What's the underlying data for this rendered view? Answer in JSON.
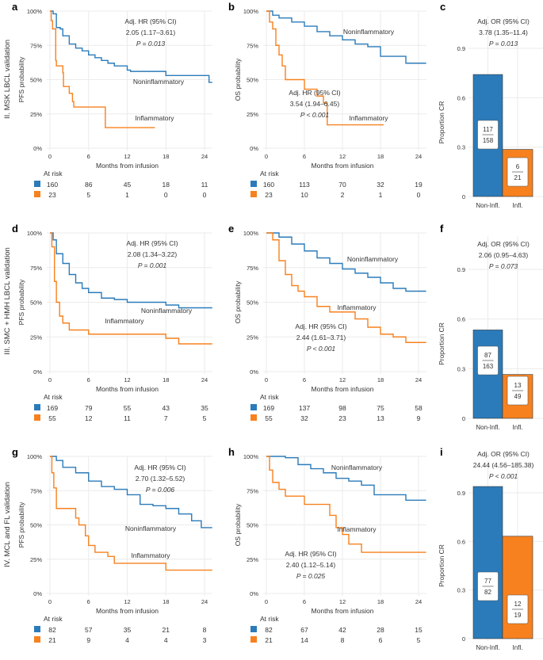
{
  "colors": {
    "noninflammatory": "#2b7bba",
    "inflammatory": "#f7811f",
    "grid": "#ebebeb"
  },
  "row_labels": [
    "II. MSK LBCL validation",
    "III. SMC + HMH LBCL validation",
    "IV. MCL and FL validation"
  ],
  "chart_data": [
    {
      "panel": "a",
      "type": "line",
      "step": true,
      "ylabel": "PFS probability",
      "xlabel": "Months from infusion",
      "xlim": [
        0,
        25
      ],
      "ylim": [
        0,
        1
      ],
      "xticks": [
        "0",
        "6",
        "12",
        "18",
        "24"
      ],
      "yticks": [
        "0%",
        "25%",
        "50%",
        "75%",
        "100%"
      ],
      "grid": true,
      "annotation": [
        "Adj. HR (95% CI)",
        "2.05 (1.17–3.61)",
        "P = 0.013"
      ],
      "series": [
        {
          "name": "Noninflammatory",
          "points": [
            [
              0,
              1
            ],
            [
              0.5,
              0.98
            ],
            [
              1,
              0.88
            ],
            [
              1.6,
              0.87
            ],
            [
              2,
              0.82
            ],
            [
              3,
              0.76
            ],
            [
              4,
              0.73
            ],
            [
              5,
              0.71
            ],
            [
              6,
              0.68
            ],
            [
              7,
              0.66
            ],
            [
              8,
              0.64
            ],
            [
              9,
              0.62
            ],
            [
              10,
              0.6
            ],
            [
              12,
              0.57
            ],
            [
              12.5,
              0.56
            ],
            [
              18,
              0.53
            ],
            [
              24.7,
              0.48
            ],
            [
              25.2,
              0.48
            ]
          ]
        },
        {
          "name": "Inflammatory",
          "points": [
            [
              0,
              1
            ],
            [
              0.2,
              0.93
            ],
            [
              0.4,
              0.87
            ],
            [
              0.9,
              0.64
            ],
            [
              1,
              0.6
            ],
            [
              2,
              0.55
            ],
            [
              2.1,
              0.45
            ],
            [
              3,
              0.4
            ],
            [
              3.5,
              0.34
            ],
            [
              3.7,
              0.3
            ],
            [
              8.6,
              0.15
            ],
            [
              16.3,
              0.15
            ]
          ]
        }
      ],
      "at_risk": {
        "title": "At risk",
        "Noninflammatory": [
          "160",
          "86",
          "45",
          "18",
          "11"
        ],
        "Inflammatory": [
          "23",
          "5",
          "1",
          "0",
          "0"
        ]
      }
    },
    {
      "panel": "b",
      "type": "line",
      "step": true,
      "ylabel": "OS probability",
      "xlabel": "Months from infusion",
      "xlim": [
        0,
        25
      ],
      "ylim": [
        0,
        1
      ],
      "xticks": [
        "0",
        "6",
        "12",
        "18",
        "24"
      ],
      "yticks": [
        "0%",
        "25%",
        "50%",
        "75%",
        "100%"
      ],
      "grid": true,
      "annotation": [
        "Adj. HR (95% CI)",
        "3.54 (1.94–6.45)",
        "P < 0.001"
      ],
      "series": [
        {
          "name": "Noninflammatory",
          "points": [
            [
              0,
              1
            ],
            [
              1,
              0.97
            ],
            [
              2,
              0.95
            ],
            [
              4,
              0.92
            ],
            [
              6,
              0.89
            ],
            [
              8,
              0.85
            ],
            [
              10,
              0.82
            ],
            [
              12,
              0.79
            ],
            [
              14,
              0.76
            ],
            [
              16,
              0.74
            ],
            [
              18,
              0.67
            ],
            [
              20,
              0.67
            ],
            [
              22,
              0.62
            ],
            [
              25.2,
              0.62
            ]
          ]
        },
        {
          "name": "Inflammatory",
          "points": [
            [
              0,
              1
            ],
            [
              0.5,
              0.92
            ],
            [
              1,
              0.87
            ],
            [
              1.5,
              0.75
            ],
            [
              2,
              0.68
            ],
            [
              2.5,
              0.6
            ],
            [
              3,
              0.5
            ],
            [
              5.5,
              0.5
            ],
            [
              6,
              0.43
            ],
            [
              7,
              0.43
            ],
            [
              8,
              0.38
            ],
            [
              9,
              0.33
            ],
            [
              9.6,
              0.17
            ],
            [
              18.5,
              0.17
            ]
          ]
        }
      ],
      "at_risk": {
        "title": "At risk",
        "Noninflammatory": [
          "160",
          "113",
          "70",
          "32",
          "19"
        ],
        "Inflammatory": [
          "23",
          "10",
          "2",
          "1",
          "0"
        ]
      }
    },
    {
      "panel": "c",
      "type": "bar",
      "ylabel": "Proportion CR",
      "ylim": [
        0,
        1.1
      ],
      "yticks": [
        "0",
        "0.3",
        "0.6",
        "0.9"
      ],
      "grid": true,
      "categories": [
        "Non-Infl.",
        "Infl."
      ],
      "values": [
        0.741,
        0.286
      ],
      "fractions": [
        [
          "117",
          "158"
        ],
        [
          "6",
          "21"
        ]
      ],
      "annotation": [
        "Adj. OR (95% CI)",
        "3.78 (1.35–11.4)",
        "P = 0.013"
      ]
    },
    {
      "panel": "d",
      "type": "line",
      "step": true,
      "ylabel": "PFS probability",
      "xlabel": "Months from infusion",
      "xlim": [
        0,
        25
      ],
      "ylim": [
        0,
        1
      ],
      "xticks": [
        "0",
        "6",
        "12",
        "18",
        "24"
      ],
      "yticks": [
        "0%",
        "25%",
        "50%",
        "75%",
        "100%"
      ],
      "grid": true,
      "annotation": [
        "Adj. HR (95% CI)",
        "2.08 (1.34–3.22)",
        "P = 0.001"
      ],
      "series": [
        {
          "name": "Noninflammatory",
          "points": [
            [
              0,
              1
            ],
            [
              0.5,
              0.95
            ],
            [
              1,
              0.85
            ],
            [
              2,
              0.78
            ],
            [
              3,
              0.7
            ],
            [
              4,
              0.64
            ],
            [
              5,
              0.6
            ],
            [
              6,
              0.57
            ],
            [
              8,
              0.53
            ],
            [
              10,
              0.52
            ],
            [
              12,
              0.5
            ],
            [
              18,
              0.48
            ],
            [
              20,
              0.46
            ],
            [
              25.2,
              0.46
            ]
          ]
        },
        {
          "name": "Inflammatory",
          "points": [
            [
              0,
              1
            ],
            [
              0.3,
              0.9
            ],
            [
              0.7,
              0.65
            ],
            [
              1,
              0.5
            ],
            [
              1.5,
              0.4
            ],
            [
              2,
              0.35
            ],
            [
              3,
              0.3
            ],
            [
              6,
              0.27
            ],
            [
              16,
              0.27
            ],
            [
              18,
              0.24
            ],
            [
              20,
              0.2
            ],
            [
              25.2,
              0.2
            ]
          ]
        }
      ],
      "at_risk": {
        "title": "At risk",
        "Noninflammatory": [
          "169",
          "79",
          "55",
          "43",
          "35"
        ],
        "Inflammatory": [
          "55",
          "12",
          "11",
          "7",
          "5"
        ]
      }
    },
    {
      "panel": "e",
      "type": "line",
      "step": true,
      "ylabel": "OS probability",
      "xlabel": "Months from infusion",
      "xlim": [
        0,
        25
      ],
      "ylim": [
        0,
        1
      ],
      "xticks": [
        "0",
        "6",
        "12",
        "18",
        "24"
      ],
      "yticks": [
        "0%",
        "25%",
        "50%",
        "75%",
        "100%"
      ],
      "grid": true,
      "annotation": [
        "Adj. HR (95% CI)",
        "2.44 (1.61–3.71)",
        "P < 0.001"
      ],
      "series": [
        {
          "name": "Noninflammatory",
          "points": [
            [
              0,
              1
            ],
            [
              2,
              0.97
            ],
            [
              4,
              0.92
            ],
            [
              6,
              0.87
            ],
            [
              8,
              0.82
            ],
            [
              10,
              0.78
            ],
            [
              12,
              0.74
            ],
            [
              14,
              0.71
            ],
            [
              16,
              0.68
            ],
            [
              18,
              0.64
            ],
            [
              20,
              0.6
            ],
            [
              22,
              0.58
            ],
            [
              25.2,
              0.58
            ]
          ]
        },
        {
          "name": "Inflammatory",
          "points": [
            [
              0,
              1
            ],
            [
              1,
              0.95
            ],
            [
              2,
              0.8
            ],
            [
              3,
              0.7
            ],
            [
              4,
              0.62
            ],
            [
              5,
              0.58
            ],
            [
              6,
              0.54
            ],
            [
              8,
              0.47
            ],
            [
              10,
              0.43
            ],
            [
              14,
              0.38
            ],
            [
              16,
              0.32
            ],
            [
              18,
              0.27
            ],
            [
              20,
              0.25
            ],
            [
              22,
              0.21
            ],
            [
              25.2,
              0.21
            ]
          ]
        }
      ],
      "at_risk": {
        "title": "At risk",
        "Noninflammatory": [
          "169",
          "137",
          "98",
          "75",
          "58"
        ],
        "Inflammatory": [
          "55",
          "32",
          "23",
          "13",
          "9"
        ]
      }
    },
    {
      "panel": "f",
      "type": "bar",
      "ylabel": "Proportion CR",
      "ylim": [
        0,
        1.1
      ],
      "yticks": [
        "0",
        "0.3",
        "0.6",
        "0.9"
      ],
      "grid": true,
      "categories": [
        "Non-Infl.",
        "Infl."
      ],
      "values": [
        0.534,
        0.265
      ],
      "fractions": [
        [
          "87",
          "163"
        ],
        [
          "13",
          "49"
        ]
      ],
      "annotation": [
        "Adj. OR (95% CI)",
        "2.06 (0.95–4.63)",
        "P = 0.073"
      ]
    },
    {
      "panel": "g",
      "type": "line",
      "step": true,
      "ylabel": "PFS probability",
      "xlabel": "Months from infusion",
      "xlim": [
        0,
        25
      ],
      "ylim": [
        0,
        1
      ],
      "xticks": [
        "0",
        "6",
        "12",
        "18",
        "24"
      ],
      "yticks": [
        "0%",
        "25%",
        "50%",
        "75%",
        "100%"
      ],
      "grid": true,
      "annotation": [
        "Adj. HR (95% CI)",
        "2.70 (1.32–5.52)",
        "P = 0.006"
      ],
      "series": [
        {
          "name": "Noninflammatory",
          "points": [
            [
              0,
              1
            ],
            [
              1,
              0.97
            ],
            [
              2,
              0.92
            ],
            [
              4,
              0.88
            ],
            [
              6,
              0.82
            ],
            [
              8,
              0.78
            ],
            [
              10,
              0.76
            ],
            [
              12,
              0.72
            ],
            [
              14,
              0.65
            ],
            [
              16,
              0.64
            ],
            [
              18,
              0.62
            ],
            [
              20,
              0.58
            ],
            [
              22,
              0.53
            ],
            [
              23.5,
              0.48
            ],
            [
              25.2,
              0.48
            ]
          ]
        },
        {
          "name": "Inflammatory",
          "points": [
            [
              0,
              1
            ],
            [
              0.3,
              0.88
            ],
            [
              0.6,
              0.77
            ],
            [
              1,
              0.62
            ],
            [
              3,
              0.62
            ],
            [
              4,
              0.55
            ],
            [
              4.5,
              0.5
            ],
            [
              5.5,
              0.42
            ],
            [
              6,
              0.35
            ],
            [
              7,
              0.3
            ],
            [
              9,
              0.27
            ],
            [
              10,
              0.22
            ],
            [
              18,
              0.17
            ],
            [
              25.2,
              0.17
            ]
          ]
        }
      ],
      "at_risk": {
        "title": "At risk",
        "Noninflammatory": [
          "82",
          "57",
          "35",
          "21",
          "8"
        ],
        "Inflammatory": [
          "21",
          "9",
          "4",
          "4",
          "3"
        ]
      }
    },
    {
      "panel": "h",
      "type": "line",
      "step": true,
      "ylabel": "OS probability",
      "xlabel": "Months from infusion",
      "xlim": [
        0,
        25
      ],
      "ylim": [
        0,
        1
      ],
      "xticks": [
        "0",
        "6",
        "12",
        "18",
        "24"
      ],
      "yticks": [
        "0%",
        "25%",
        "50%",
        "75%",
        "100%"
      ],
      "grid": true,
      "annotation": [
        "Adj. HR (95% CI)",
        "2.40 (1.12–5.14)",
        "P = 0.025"
      ],
      "series": [
        {
          "name": "Noninflammatory",
          "points": [
            [
              0,
              1
            ],
            [
              3,
              0.99
            ],
            [
              5,
              0.94
            ],
            [
              7,
              0.91
            ],
            [
              9,
              0.88
            ],
            [
              11,
              0.84
            ],
            [
              13,
              0.82
            ],
            [
              15,
              0.79
            ],
            [
              17,
              0.72
            ],
            [
              20,
              0.72
            ],
            [
              22,
              0.68
            ],
            [
              25.2,
              0.68
            ]
          ]
        },
        {
          "name": "Inflammatory",
          "points": [
            [
              0,
              1
            ],
            [
              0.5,
              0.9
            ],
            [
              1,
              0.81
            ],
            [
              2,
              0.76
            ],
            [
              3,
              0.71
            ],
            [
              6,
              0.65
            ],
            [
              10,
              0.57
            ],
            [
              11,
              0.48
            ],
            [
              12,
              0.43
            ],
            [
              13,
              0.36
            ],
            [
              15,
              0.3
            ],
            [
              25.2,
              0.3
            ]
          ]
        }
      ],
      "at_risk": {
        "title": "At risk",
        "Noninflammatory": [
          "82",
          "67",
          "42",
          "28",
          "15"
        ],
        "Inflammatory": [
          "21",
          "14",
          "8",
          "6",
          "5"
        ]
      }
    },
    {
      "panel": "i",
      "type": "bar",
      "ylabel": "Proportion CR",
      "ylim": [
        0,
        1.1
      ],
      "yticks": [
        "0",
        "0.3",
        "0.6",
        "0.9"
      ],
      "grid": true,
      "categories": [
        "Non-Infl.",
        "Infl."
      ],
      "values": [
        0.939,
        0.632
      ],
      "fractions": [
        [
          "77",
          "82"
        ],
        [
          "12",
          "19"
        ]
      ],
      "annotation": [
        "Adj. OR (95% CI)",
        "24.44 (4.56–185.38)",
        "P < 0.001"
      ]
    }
  ]
}
